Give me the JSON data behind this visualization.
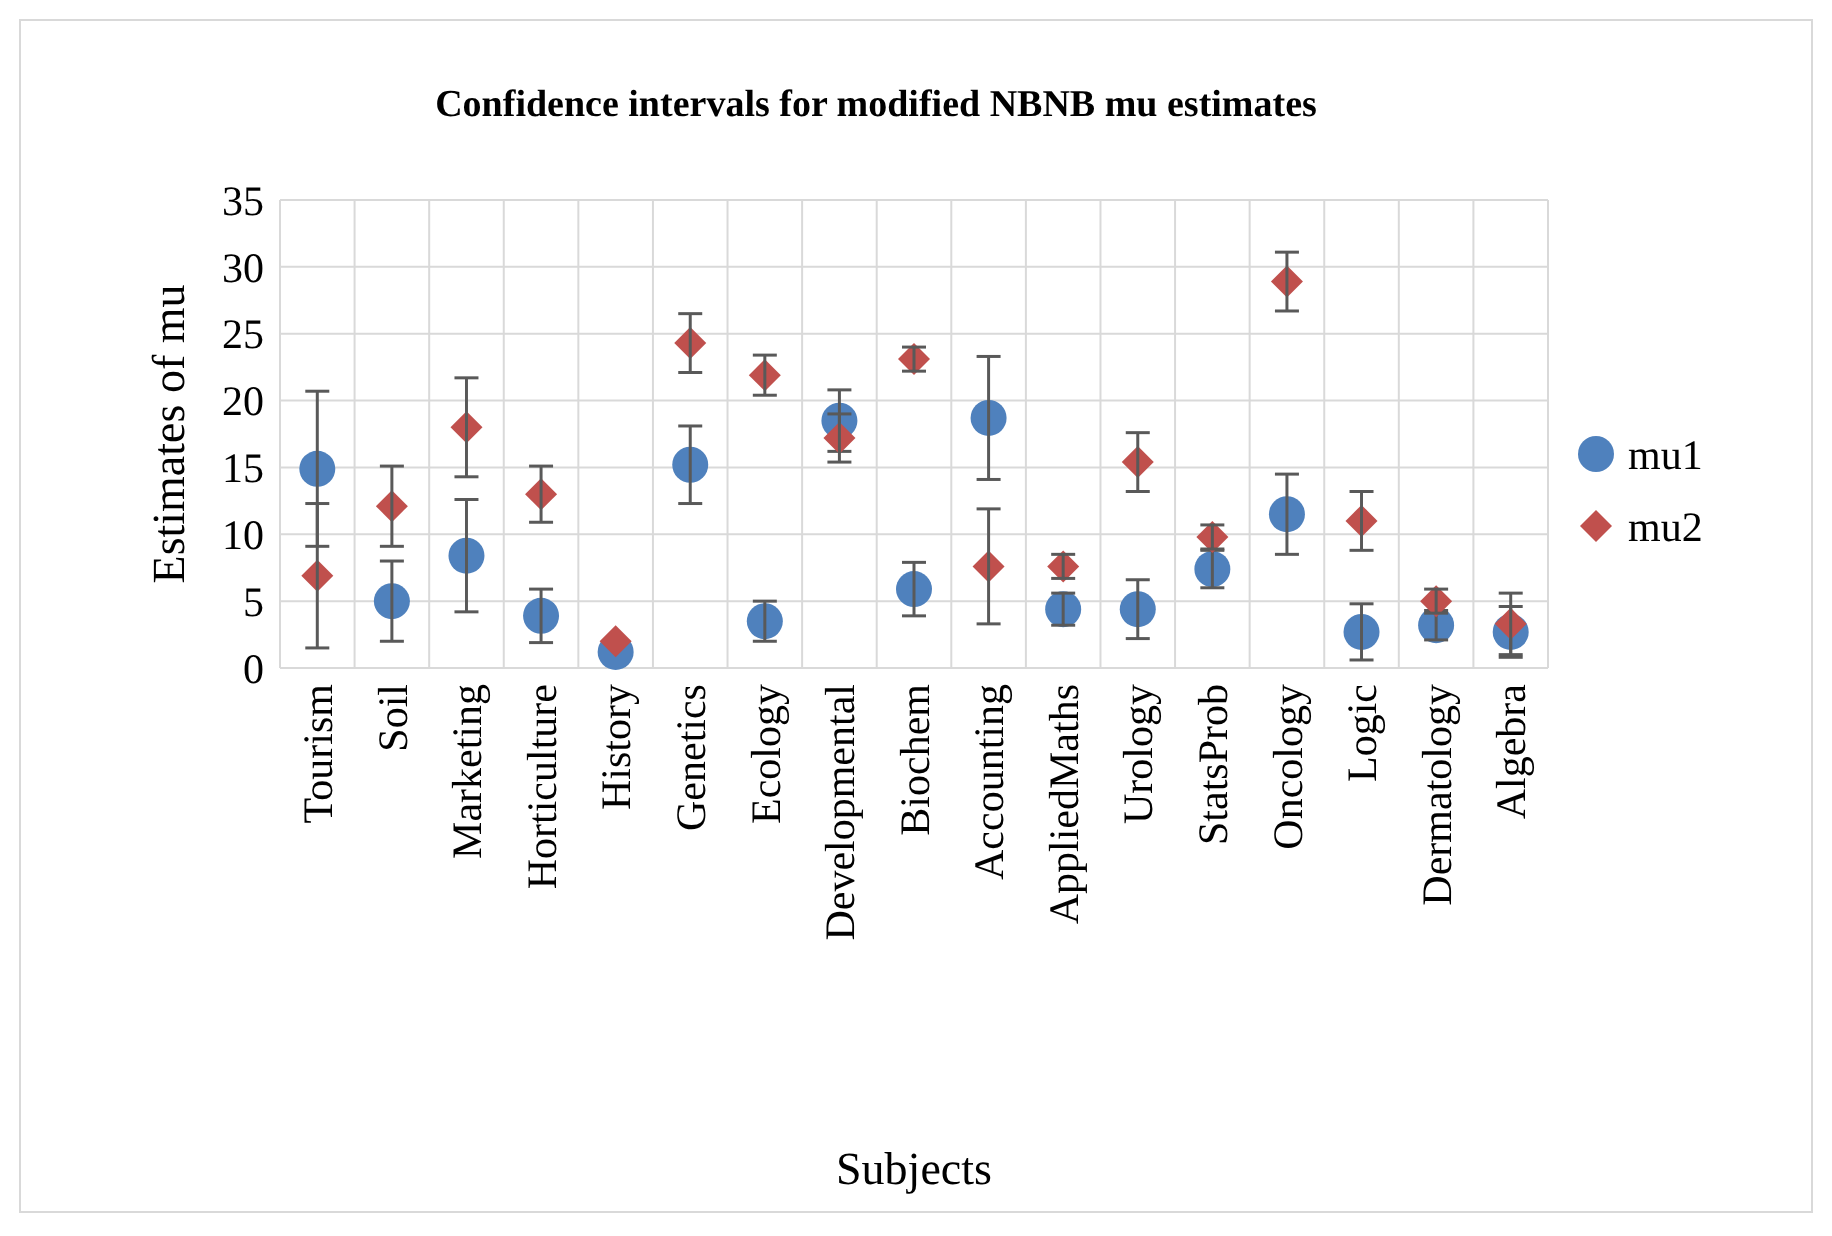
{
  "chart_data": {
    "type": "scatter",
    "title": "Confidence intervals for modified NBNB mu estimates",
    "xlabel": "Subjects",
    "ylabel": "Estimates of mu",
    "categories": [
      "Tourism",
      "Soil",
      "Marketing",
      "Horticulture",
      "History",
      "Genetics",
      "Ecology",
      "Developmental",
      "Biochem",
      "Accounting",
      "AppliedMaths",
      "Urology",
      "StatsProb",
      "Oncology",
      "Logic",
      "Dermatology",
      "Algebra"
    ],
    "series": [
      {
        "name": "mu1",
        "color": "#4f81bd",
        "marker": "circle",
        "values": [
          14.9,
          5.0,
          8.4,
          3.9,
          1.2,
          15.2,
          3.5,
          18.5,
          5.9,
          18.7,
          4.4,
          4.4,
          7.4,
          11.5,
          2.7,
          3.2,
          2.7
        ],
        "errors": [
          5.8,
          3.0,
          4.2,
          2.0,
          null,
          2.9,
          1.5,
          2.3,
          2.0,
          4.6,
          1.2,
          2.2,
          1.4,
          3.0,
          2.1,
          1.1,
          1.9
        ]
      },
      {
        "name": "mu2",
        "color": "#c0504d",
        "marker": "diamond",
        "values": [
          6.9,
          12.1,
          18.0,
          13.0,
          2.0,
          24.3,
          21.9,
          17.2,
          23.1,
          7.6,
          7.6,
          15.4,
          9.8,
          28.9,
          11.0,
          5.0,
          3.3
        ],
        "errors": [
          5.4,
          3.0,
          3.7,
          2.1,
          null,
          2.2,
          1.5,
          1.8,
          0.9,
          4.3,
          0.9,
          2.2,
          0.9,
          2.2,
          2.2,
          0.9,
          2.3
        ]
      }
    ],
    "ylim": [
      0,
      35
    ],
    "yticks": [
      0,
      5,
      10,
      15,
      20,
      25,
      30,
      35
    ],
    "grid": true,
    "legend": "right"
  }
}
